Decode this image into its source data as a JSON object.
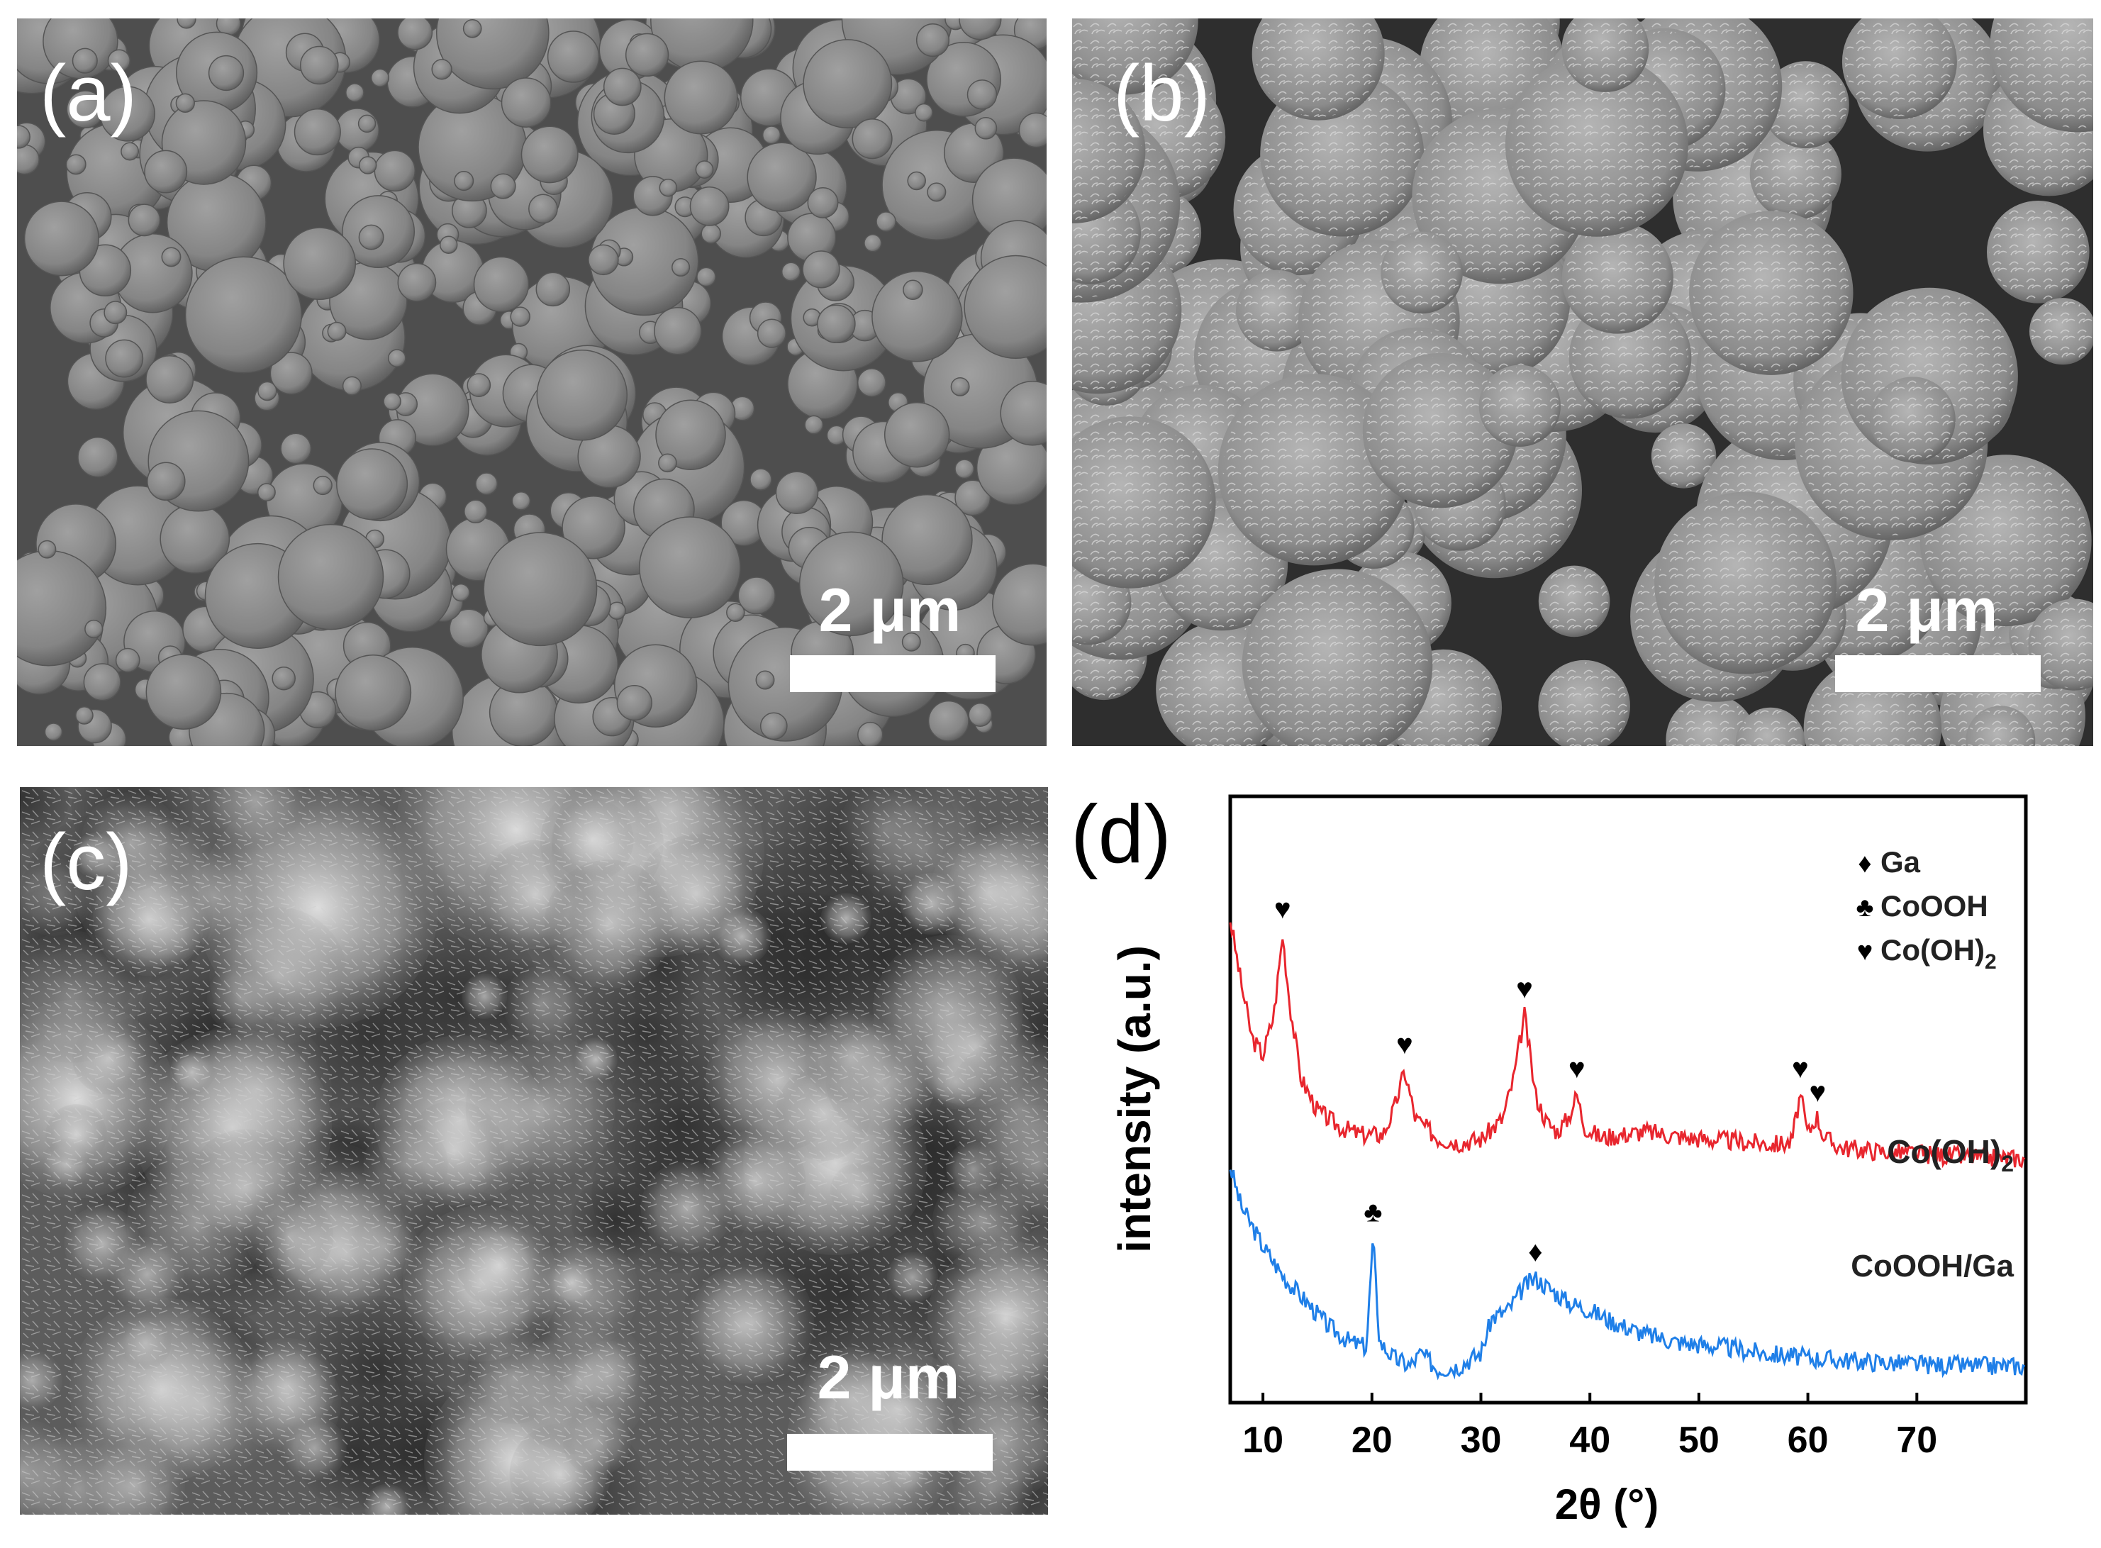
{
  "panels": {
    "a": {
      "label": "(a)",
      "scale_bar": "2 μm"
    },
    "b": {
      "label": "(b)",
      "scale_bar": "2 μm"
    },
    "c": {
      "label": "(c)",
      "scale_bar": "2 μm"
    },
    "d": {
      "label": "(d)"
    }
  },
  "colors": {
    "coooh_ga": "#1f7fe8",
    "coh2": "#e8262e",
    "sem_bg": "#5f5f5f"
  },
  "chart_data": {
    "type": "line",
    "xlabel": "2θ (°)",
    "ylabel": "intensity (a.u.)",
    "xlim": [
      7,
      80
    ],
    "xticks": [
      10,
      20,
      30,
      40,
      50,
      60,
      70
    ],
    "y_ticks_shown": false,
    "legend": {
      "position": "top-right",
      "entries": [
        {
          "symbol": "♦",
          "text": "Ga"
        },
        {
          "symbol": "♣",
          "text": "CoOOH"
        },
        {
          "symbol": "♥",
          "text": "Co(OH)",
          "subscript": "2"
        }
      ]
    },
    "series": [
      {
        "name": "Co(OH)2",
        "label_text": "Co(OH)",
        "label_sub": "2",
        "color": "#e8262e",
        "baseline": 1.0,
        "x": [
          7,
          8,
          9,
          10,
          11,
          11.8,
          12.5,
          13.5,
          15,
          17,
          19,
          21,
          22,
          23,
          24,
          26,
          28,
          30,
          32,
          33,
          34,
          35,
          36,
          37,
          38,
          38.8,
          39.5,
          41,
          43,
          45,
          47,
          49,
          51,
          53,
          55,
          57,
          58.5,
          59.3,
          60,
          60.8,
          61.5,
          63,
          66,
          70,
          75,
          80
        ],
        "y": [
          2.55,
          2.15,
          1.8,
          1.7,
          1.95,
          2.45,
          2.0,
          1.55,
          1.35,
          1.25,
          1.2,
          1.2,
          1.35,
          1.6,
          1.3,
          1.18,
          1.15,
          1.17,
          1.3,
          1.55,
          1.95,
          1.45,
          1.28,
          1.22,
          1.3,
          1.45,
          1.25,
          1.18,
          1.2,
          1.22,
          1.2,
          1.18,
          1.17,
          1.16,
          1.15,
          1.14,
          1.15,
          1.45,
          1.2,
          1.32,
          1.18,
          1.12,
          1.1,
          1.08,
          1.06,
          1.05
        ],
        "markers": [
          {
            "symbol": "♥",
            "x": 11.8
          },
          {
            "symbol": "♥",
            "x": 23
          },
          {
            "symbol": "♥",
            "x": 34
          },
          {
            "symbol": "♥",
            "x": 38.8
          },
          {
            "symbol": "♥",
            "x": 59.3
          },
          {
            "symbol": "♥",
            "x": 60.9
          }
        ]
      },
      {
        "name": "CoOOH/Ga",
        "label_text": "CoOOH/Ga",
        "color": "#1f7fe8",
        "baseline": 0.0,
        "x": [
          7,
          8,
          10,
          12,
          14,
          16,
          18,
          19.5,
          20.1,
          20.7,
          22,
          23.5,
          24.5,
          26,
          28,
          30,
          31,
          32.5,
          34,
          35,
          36,
          38,
          40,
          42,
          45,
          48,
          52,
          56,
          60,
          65,
          70,
          75,
          80
        ],
        "y": [
          1.55,
          1.3,
          1.05,
          0.85,
          0.7,
          0.55,
          0.45,
          0.42,
          1.1,
          0.45,
          0.35,
          0.3,
          0.38,
          0.28,
          0.3,
          0.38,
          0.6,
          0.65,
          0.8,
          0.85,
          0.8,
          0.7,
          0.65,
          0.58,
          0.5,
          0.45,
          0.42,
          0.38,
          0.35,
          0.33,
          0.31,
          0.3,
          0.3
        ],
        "markers": [
          {
            "symbol": "♣",
            "x": 20.1
          },
          {
            "symbol": "♦",
            "x": 35
          }
        ]
      }
    ]
  }
}
